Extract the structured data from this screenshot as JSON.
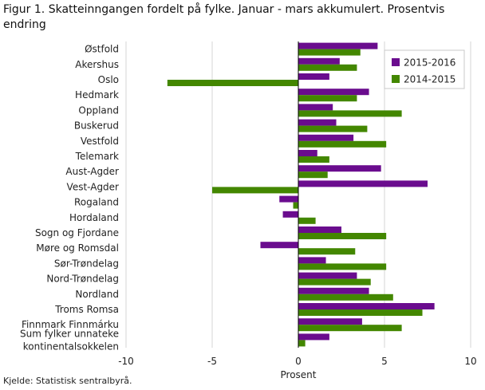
{
  "chart_data": {
    "type": "bar",
    "orientation": "horizontal",
    "title": "Figur 1. Skatteinngangen fordelt på fylke. Januar - mars akkumulert. Prosentvis endring",
    "xlabel": "Prosent",
    "ylabel": "",
    "xlim": [
      -10,
      10
    ],
    "xticks": [
      -10,
      -5,
      0,
      5,
      10
    ],
    "xtick_labels": [
      "-10",
      "-5",
      "0",
      "5",
      "10"
    ],
    "categories": [
      "Østfold",
      "Akershus",
      "Oslo",
      "Hedmark",
      "Oppland",
      "Buskerud",
      "Vestfold",
      "Telemark",
      "Aust-Agder",
      "Vest-Agder",
      "Rogaland",
      "Hordaland",
      "Sogn og Fjordane",
      "Møre og Romsdal",
      "Sør-Trøndelag",
      "Nord-Trøndelag",
      "Nordland",
      "Troms Romsa",
      "Finnmark Finnmárku",
      "Sum fylker unnateke kontinentalsokkelen"
    ],
    "category_lines": [
      [
        "Østfold"
      ],
      [
        "Akershus"
      ],
      [
        "Oslo"
      ],
      [
        "Hedmark"
      ],
      [
        "Oppland"
      ],
      [
        "Buskerud"
      ],
      [
        "Vestfold"
      ],
      [
        "Telemark"
      ],
      [
        "Aust-Agder"
      ],
      [
        "Vest-Agder"
      ],
      [
        "Rogaland"
      ],
      [
        "Hordaland"
      ],
      [
        "Sogn og Fjordane"
      ],
      [
        "Møre og Romsdal"
      ],
      [
        "Sør-Trøndelag"
      ],
      [
        "Nord-Trøndelag"
      ],
      [
        "Nordland"
      ],
      [
        "Troms Romsa"
      ],
      [
        "Finnmark Finnmárku"
      ],
      [
        "Sum fylker unnateke",
        "kontinentalsokkelen"
      ]
    ],
    "series": [
      {
        "name": "2015-2016",
        "color": "#6a0c8e",
        "values": [
          4.6,
          2.4,
          1.8,
          4.1,
          2.0,
          2.2,
          3.2,
          1.1,
          4.8,
          7.5,
          -1.1,
          -0.9,
          2.5,
          -2.2,
          1.6,
          3.4,
          4.1,
          7.9,
          3.7,
          1.8
        ]
      },
      {
        "name": "2014-2015",
        "color": "#438700",
        "values": [
          3.6,
          3.4,
          -7.6,
          3.4,
          6.0,
          4.0,
          5.1,
          1.8,
          1.7,
          -5.0,
          -0.3,
          1.0,
          5.1,
          3.3,
          5.1,
          4.2,
          5.5,
          7.2,
          6.0,
          0.4
        ]
      }
    ],
    "legend_position": "top-right",
    "grid": true
  },
  "source_text": "Kjelde: Statistisk sentralbyrå."
}
